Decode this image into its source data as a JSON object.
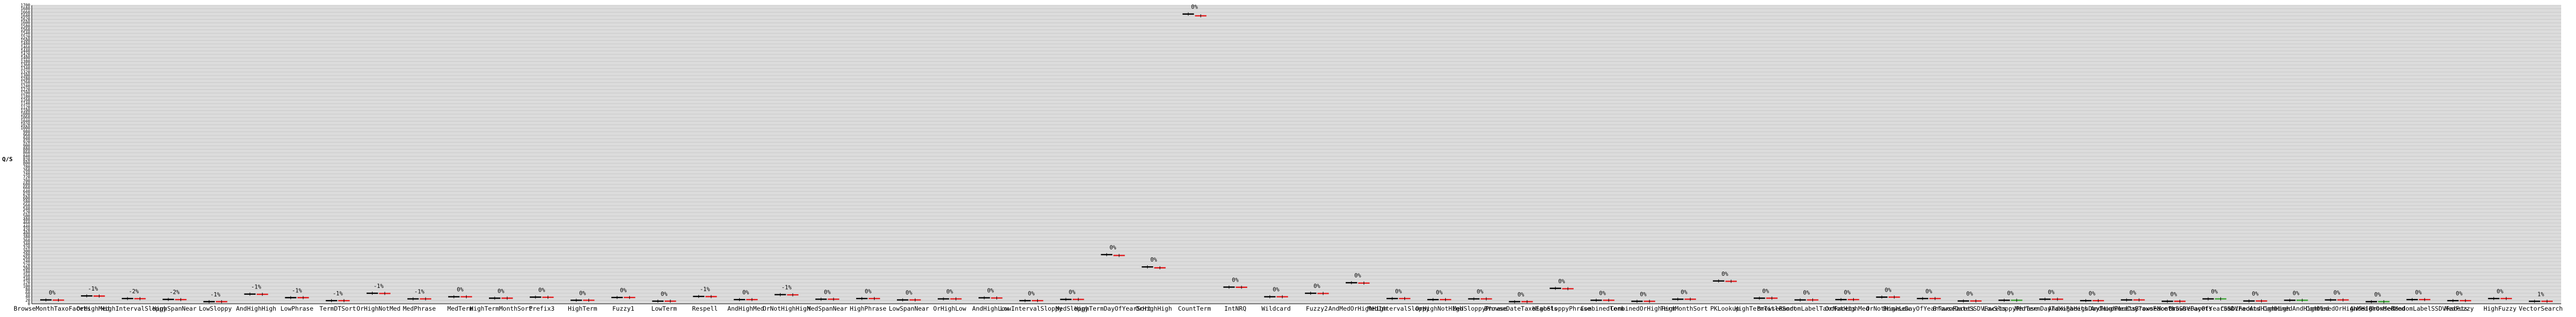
{
  "chart_data": {
    "type": "bar",
    "ylabel": "Q/S",
    "ylim": [
      0,
      1700
    ],
    "grid": true,
    "series": [
      {
        "role": "baseline",
        "color": "#000000"
      },
      {
        "role": "candidate",
        "color": "#e31a1c"
      }
    ],
    "improved_color": "#33a02c",
    "categories": [
      "BrowseMonthTaxoFacets",
      "OrHighMed",
      "HighIntervalSloppy",
      "HighSpanNear",
      "LowSloppy",
      "AndHighHigh",
      "LowPhrase",
      "TermDTSort",
      "OrHighNotMed",
      "MedPhrase",
      "MedTerm",
      "HighTermMonthSort",
      "Prefix3",
      "HighTerm",
      "Fuzzy1",
      "LowTerm",
      "Respell",
      "AndHighMed",
      "OrNotHighHigh",
      "MedSpanNear",
      "HighPhrase",
      "LowSpanNear",
      "OrHighLow",
      "AndHighLow",
      "LowIntervalSloppy",
      "MedSloppy",
      "HighTermDayOfYearSort",
      "OrHighHigh",
      "CountTerm",
      "IntNRQ",
      "Wildcard",
      "Fuzzy2",
      "AndMedOrHighHigh",
      "MedIntervalSloppy",
      "OrHighNotHigh",
      "MedSloppyPhrase",
      "BrowseDateTaxoFacets",
      "HighSloppyPhrase",
      "CombinedTerm",
      "CombinedOrHighHigh",
      "TermMonthSort",
      "PKLookup",
      "HighTermTitleSort",
      "BrowseRandomLabelTaxoFacets",
      "OrNotHighMed",
      "OrNotHighLow",
      "BrowseDayOfYearTaxoFacets",
      "BrowseDateSSDVFacets",
      "LowSloppyPhrase",
      "MedTermDayTaxoFacets",
      "AndHighHighDayTaxoFacets",
      "AndHighMedDayTaxoFacets",
      "BrowseMonthSSDVFacets",
      "BrowseDayOfYearSSDVFacets",
      "CombinedAndHighHigh",
      "CombinedAndHighMed",
      "CombinedOrHighMed",
      "AndHighOrMedMed",
      "BrowseRandomLabelSSDVFacets",
      "MedFuzzy",
      "HighFuzzy",
      "VectorSearch"
    ],
    "baseline_values": [
      22,
      45,
      30,
      25,
      12,
      55,
      35,
      18,
      60,
      28,
      40,
      32,
      38,
      20,
      36,
      15,
      42,
      24,
      52,
      26,
      30,
      22,
      28,
      34,
      18,
      25,
      280,
      210,
      1650,
      95,
      40,
      60,
      120,
      30,
      24,
      28,
      12,
      88,
      20,
      14,
      26,
      130,
      32,
      22,
      24,
      38,
      30,
      16,
      20,
      26,
      18,
      22,
      14,
      28,
      16,
      20,
      22,
      12,
      24,
      18,
      30,
      14
    ],
    "candidate_values": [
      21,
      44,
      29,
      24,
      12,
      54,
      35,
      18,
      59,
      28,
      40,
      32,
      37,
      20,
      36,
      15,
      41,
      24,
      51,
      26,
      30,
      22,
      28,
      33,
      18,
      25,
      275,
      205,
      1640,
      94,
      40,
      59,
      118,
      30,
      24,
      28,
      12,
      86,
      20,
      14,
      26,
      128,
      32,
      22,
      24,
      38,
      30,
      16,
      20,
      26,
      18,
      22,
      14,
      28,
      16,
      20,
      22,
      12,
      24,
      18,
      30,
      14
    ],
    "change_labels": [
      "0%",
      "-1%",
      "-2%",
      "-2%",
      "-1%",
      "-1%",
      "-1%",
      "-1%",
      "-1%",
      "-1%",
      "0%",
      "0%",
      "0%",
      "0%",
      "0%",
      "0%",
      "-1%",
      "0%",
      "-1%",
      "0%",
      "0%",
      "0%",
      "0%",
      "0%",
      "0%",
      "0%",
      "0%",
      "0%",
      "0%",
      "0%",
      "0%",
      "0%",
      "0%",
      "0%",
      "0%",
      "0%",
      "0%",
      "0%",
      "0%",
      "0%",
      "0%",
      "0%",
      "0%",
      "0%",
      "0%",
      "0%",
      "0%",
      "0%",
      "0%",
      "0%",
      "0%",
      "0%",
      "0%",
      "0%",
      "0%",
      "0%",
      "0%",
      "0%",
      "0%",
      "0%",
      "0%",
      "1%"
    ],
    "improved_indices": [
      48,
      53,
      55,
      57
    ]
  }
}
